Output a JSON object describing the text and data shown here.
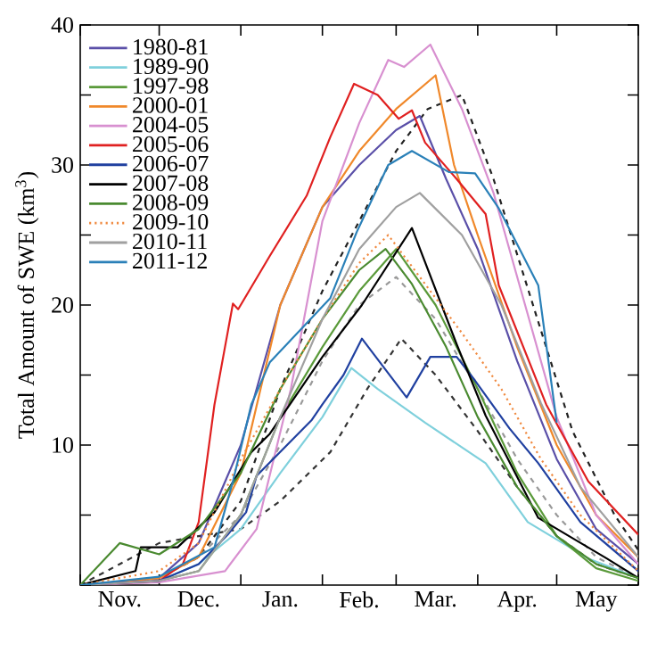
{
  "chart_data": {
    "type": "line",
    "ylabel": "Total Amount of SWE (km$^{3}$)",
    "xlim": [
      "2000-11-01",
      "2001-06-01"
    ],
    "ylim": [
      0,
      40
    ],
    "legend": "top left",
    "xticks": [
      {
        "value": "2000-11-01",
        "label": null
      },
      {
        "value": "2000-12-01",
        "label": null
      },
      {
        "value": "2001-01-01",
        "label": null
      },
      {
        "value": "2001-02-01",
        "label": null
      },
      {
        "value": "2001-03-01",
        "label": null
      },
      {
        "value": "2001-04-01",
        "label": null
      },
      {
        "value": "2001-05-01",
        "label": null
      },
      {
        "value": "2001-06-01",
        "label": null
      },
      {
        "value": "2000-11-16",
        "label": "Nov."
      },
      {
        "value": "2000-12-16",
        "label": "Dec."
      },
      {
        "value": "2001-01-16",
        "label": "Jan."
      },
      {
        "value": "2001-02-15",
        "label": "Feb."
      },
      {
        "value": "2001-03-16",
        "label": "Mar."
      },
      {
        "value": "2001-04-16",
        "label": "Apr."
      },
      {
        "value": "2001-05-16",
        "label": "May"
      }
    ],
    "yticks": [
      {
        "value": 0,
        "label": null
      },
      {
        "value": 5,
        "label": null
      },
      10,
      {
        "value": 15,
        "label": null
      },
      20,
      {
        "value": 25,
        "label": null
      },
      30,
      {
        "value": 35,
        "label": null
      },
      40
    ],
    "series": [
      {
        "name": "1980-81",
        "color": "#5a4fa8",
        "x": [
          "2000-11-01",
          "2000-12-01",
          "2000-12-16",
          "2001-01-01",
          "2001-01-16",
          "2001-02-01",
          "2001-02-15",
          "2001-03-01",
          "2001-03-10",
          "2001-03-20",
          "2001-04-01",
          "2001-04-16",
          "2001-05-01",
          "2001-05-16",
          "2001-06-01"
        ],
        "values": [
          0,
          0.5,
          3,
          10,
          20,
          27,
          30,
          32.5,
          33.5,
          29,
          24,
          16,
          9,
          4,
          1.5
        ]
      },
      {
        "name": "1989-90",
        "color": "#7fd0dc",
        "x": [
          "2000-11-01",
          "2000-12-01",
          "2000-12-16",
          "2001-01-01",
          "2001-01-16",
          "2001-02-01",
          "2001-02-12",
          "2001-02-22",
          "2001-03-12",
          "2001-04-04",
          "2001-04-20",
          "2001-05-13",
          "2001-06-01"
        ],
        "values": [
          0,
          0.3,
          1.5,
          4,
          8,
          12,
          15.5,
          14,
          11.6,
          8.7,
          4.5,
          1.9,
          0.5
        ]
      },
      {
        "name": "1997-98",
        "color": "#5a9a3a",
        "x": [
          "2000-11-01",
          "2000-12-01",
          "2000-12-16",
          "2001-01-01",
          "2001-01-16",
          "2001-02-01",
          "2001-02-15",
          "2001-03-01",
          "2001-03-16",
          "2001-04-01",
          "2001-04-16",
          "2001-05-01",
          "2001-05-16",
          "2001-06-01"
        ],
        "values": [
          0,
          0.3,
          1,
          5,
          12,
          17,
          21,
          24,
          20,
          14,
          8,
          3.5,
          1.2,
          0.3
        ]
      },
      {
        "name": "2000-01",
        "color": "#f0882a",
        "x": [
          "2000-11-01",
          "2000-12-01",
          "2000-12-16",
          "2001-01-01",
          "2001-01-16",
          "2001-02-01",
          "2001-02-15",
          "2001-03-01",
          "2001-03-16",
          "2001-03-23",
          "2001-04-01",
          "2001-04-16",
          "2001-05-01",
          "2001-05-16",
          "2001-06-01"
        ],
        "values": [
          0,
          0.5,
          2,
          8,
          20,
          27,
          31,
          34,
          36.4,
          30,
          25,
          17,
          10,
          5,
          2
        ]
      },
      {
        "name": "2004-05",
        "color": "#d890d0",
        "x": [
          "2000-11-01",
          "2000-12-01",
          "2000-12-26",
          "2001-01-07",
          "2001-01-20",
          "2001-02-01",
          "2001-02-15",
          "2001-02-26",
          "2001-03-04",
          "2001-03-14",
          "2001-03-26",
          "2001-04-07",
          "2001-04-19",
          "2001-05-01",
          "2001-05-16",
          "2001-06-01"
        ],
        "values": [
          0,
          0.2,
          1,
          4,
          14,
          26,
          33,
          37.5,
          37,
          38.6,
          34,
          28,
          20,
          12,
          5,
          1.5
        ]
      },
      {
        "name": "2005-06",
        "color": "#e02020",
        "x": [
          "2000-11-01",
          "2000-12-01",
          "2000-12-10",
          "2000-12-16",
          "2000-12-22",
          "2000-12-29",
          "2000-12-31",
          "2001-01-12",
          "2001-01-26",
          "2001-02-04",
          "2001-02-13",
          "2001-02-22",
          "2001-03-02",
          "2001-03-07",
          "2001-03-12",
          "2001-03-24",
          "2001-04-04",
          "2001-04-09",
          "2001-04-27",
          "2001-05-13",
          "2001-06-01"
        ],
        "values": [
          0,
          0.3,
          1.5,
          4.5,
          12.9,
          20.1,
          19.7,
          23.5,
          27.8,
          32,
          35.8,
          35,
          33.3,
          33.9,
          31.6,
          29,
          26.5,
          21.4,
          12.9,
          7.4,
          3.6
        ]
      },
      {
        "name": "2006-07",
        "color": "#2040a0",
        "x": [
          "2000-11-01",
          "2000-12-01",
          "2000-12-16",
          "2000-12-27",
          "2001-01-03",
          "2001-01-07",
          "2001-01-28",
          "2001-02-01",
          "2001-02-09",
          "2001-02-16",
          "2001-03-05",
          "2001-03-14",
          "2001-03-24",
          "2001-03-31",
          "2001-04-13",
          "2001-04-24",
          "2001-05-10",
          "2001-06-01"
        ],
        "values": [
          0,
          0.3,
          1.5,
          3.6,
          5.2,
          7.8,
          11.8,
          12.9,
          15,
          17.6,
          13.4,
          16.3,
          16.3,
          14.6,
          11.2,
          8.7,
          4.5,
          1
        ]
      },
      {
        "name": "2007-08",
        "color": "#000000",
        "x": [
          "2000-11-01",
          "2000-11-22",
          "2000-11-24",
          "2000-12-08",
          "2000-12-22",
          "2001-01-05",
          "2001-01-12",
          "2001-02-01",
          "2001-02-16",
          "2001-03-07",
          "2001-03-24",
          "2001-04-04",
          "2001-04-24",
          "2001-05-20",
          "2001-06-01"
        ],
        "values": [
          0,
          1,
          2.7,
          2.7,
          5.2,
          9.5,
          10.8,
          16.3,
          20,
          25.5,
          17.2,
          12.1,
          4.8,
          1.9,
          0.5
        ]
      },
      {
        "name": "2008-09",
        "color": "#4a8a30",
        "x": [
          "2000-11-01",
          "2000-11-16",
          "2000-12-01",
          "2000-12-16",
          "2001-01-01",
          "2001-01-16",
          "2001-02-01",
          "2001-02-15",
          "2001-02-25",
          "2001-03-07",
          "2001-03-20",
          "2001-04-01",
          "2001-04-16",
          "2001-05-01",
          "2001-05-16",
          "2001-06-01"
        ],
        "values": [
          0,
          3,
          2.2,
          4,
          8,
          14,
          19,
          22.5,
          24,
          21.5,
          17,
          12,
          7,
          3.5,
          1.5,
          0.5
        ]
      },
      {
        "name": "2009-10",
        "color": "#f08a40",
        "line_style": "dotted",
        "x": [
          "2000-11-01",
          "2000-12-01",
          "2000-12-16",
          "2001-01-01",
          "2001-01-16",
          "2001-02-01",
          "2001-02-15",
          "2001-02-26",
          "2001-03-10",
          "2001-03-26",
          "2001-04-10",
          "2001-04-25",
          "2001-05-10",
          "2001-06-01"
        ],
        "values": [
          0,
          1,
          3,
          9,
          14,
          19,
          23,
          25,
          22,
          18,
          14,
          9,
          5,
          1
        ]
      },
      {
        "name": "2010-11",
        "color": "#a0a0a0",
        "x": [
          "2000-11-01",
          "2000-12-01",
          "2000-12-16",
          "2001-01-01",
          "2001-01-16",
          "2001-02-01",
          "2001-02-15",
          "2001-03-01",
          "2001-03-10",
          "2001-03-26",
          "2001-04-10",
          "2001-04-25",
          "2001-05-10",
          "2001-06-01"
        ],
        "values": [
          0,
          0.3,
          1,
          5,
          12,
          19,
          24,
          27,
          28,
          25,
          20,
          13,
          7,
          2
        ]
      },
      {
        "name": "2011-12",
        "color": "#2a80b8",
        "x": [
          "2000-11-01",
          "2000-12-01",
          "2000-12-22",
          "2000-12-29",
          "2001-01-05",
          "2001-01-12",
          "2001-02-04",
          "2001-02-14",
          "2001-02-26",
          "2001-03-07",
          "2001-03-21",
          "2001-03-31",
          "2001-04-09",
          "2001-04-24",
          "2001-05-01"
        ],
        "values": [
          0,
          0.6,
          2.7,
          7.4,
          12.9,
          15.9,
          20.5,
          25.2,
          30,
          31,
          29.5,
          29.4,
          26.9,
          21.4,
          11.6
        ]
      },
      {
        "color": "#222222",
        "line_style": "dashed",
        "x": [
          "2000-11-01",
          "2000-12-01",
          "2000-12-16",
          "2001-01-01",
          "2001-01-16",
          "2001-02-01",
          "2001-02-15",
          "2001-03-01",
          "2001-03-13",
          "2001-03-26",
          "2001-04-07",
          "2001-04-22",
          "2001-05-07",
          "2001-05-23",
          "2001-06-01"
        ],
        "values": [
          0,
          0.5,
          2,
          6,
          14,
          21,
          26,
          31,
          34,
          35,
          29,
          20,
          11,
          5,
          2.5
        ]
      },
      {
        "color": "#333333",
        "line_style": "dashed",
        "x": [
          "2000-11-01",
          "2000-11-16",
          "2000-12-01",
          "2000-12-16",
          "2001-01-01",
          "2001-01-16",
          "2001-02-04",
          "2001-02-18",
          "2001-03-03",
          "2001-03-16",
          "2001-04-01",
          "2001-04-16",
          "2001-05-01",
          "2001-05-16",
          "2001-06-01"
        ],
        "values": [
          0,
          1.5,
          3,
          3.5,
          4,
          6,
          9.5,
          14,
          17.6,
          15,
          11,
          7,
          3.5,
          1.5,
          0.5
        ]
      },
      {
        "color": "#999999",
        "line_style": "dashed",
        "x": [
          "2000-11-01",
          "2000-12-01",
          "2000-12-16",
          "2001-01-01",
          "2001-01-16",
          "2001-02-01",
          "2001-02-15",
          "2001-03-01",
          "2001-03-16",
          "2001-04-01",
          "2001-04-16",
          "2001-05-01",
          "2001-05-16",
          "2001-06-01"
        ],
        "values": [
          0,
          0.5,
          2,
          5,
          10,
          16,
          20,
          22,
          19,
          14,
          9,
          5,
          2,
          0.5
        ]
      }
    ]
  }
}
